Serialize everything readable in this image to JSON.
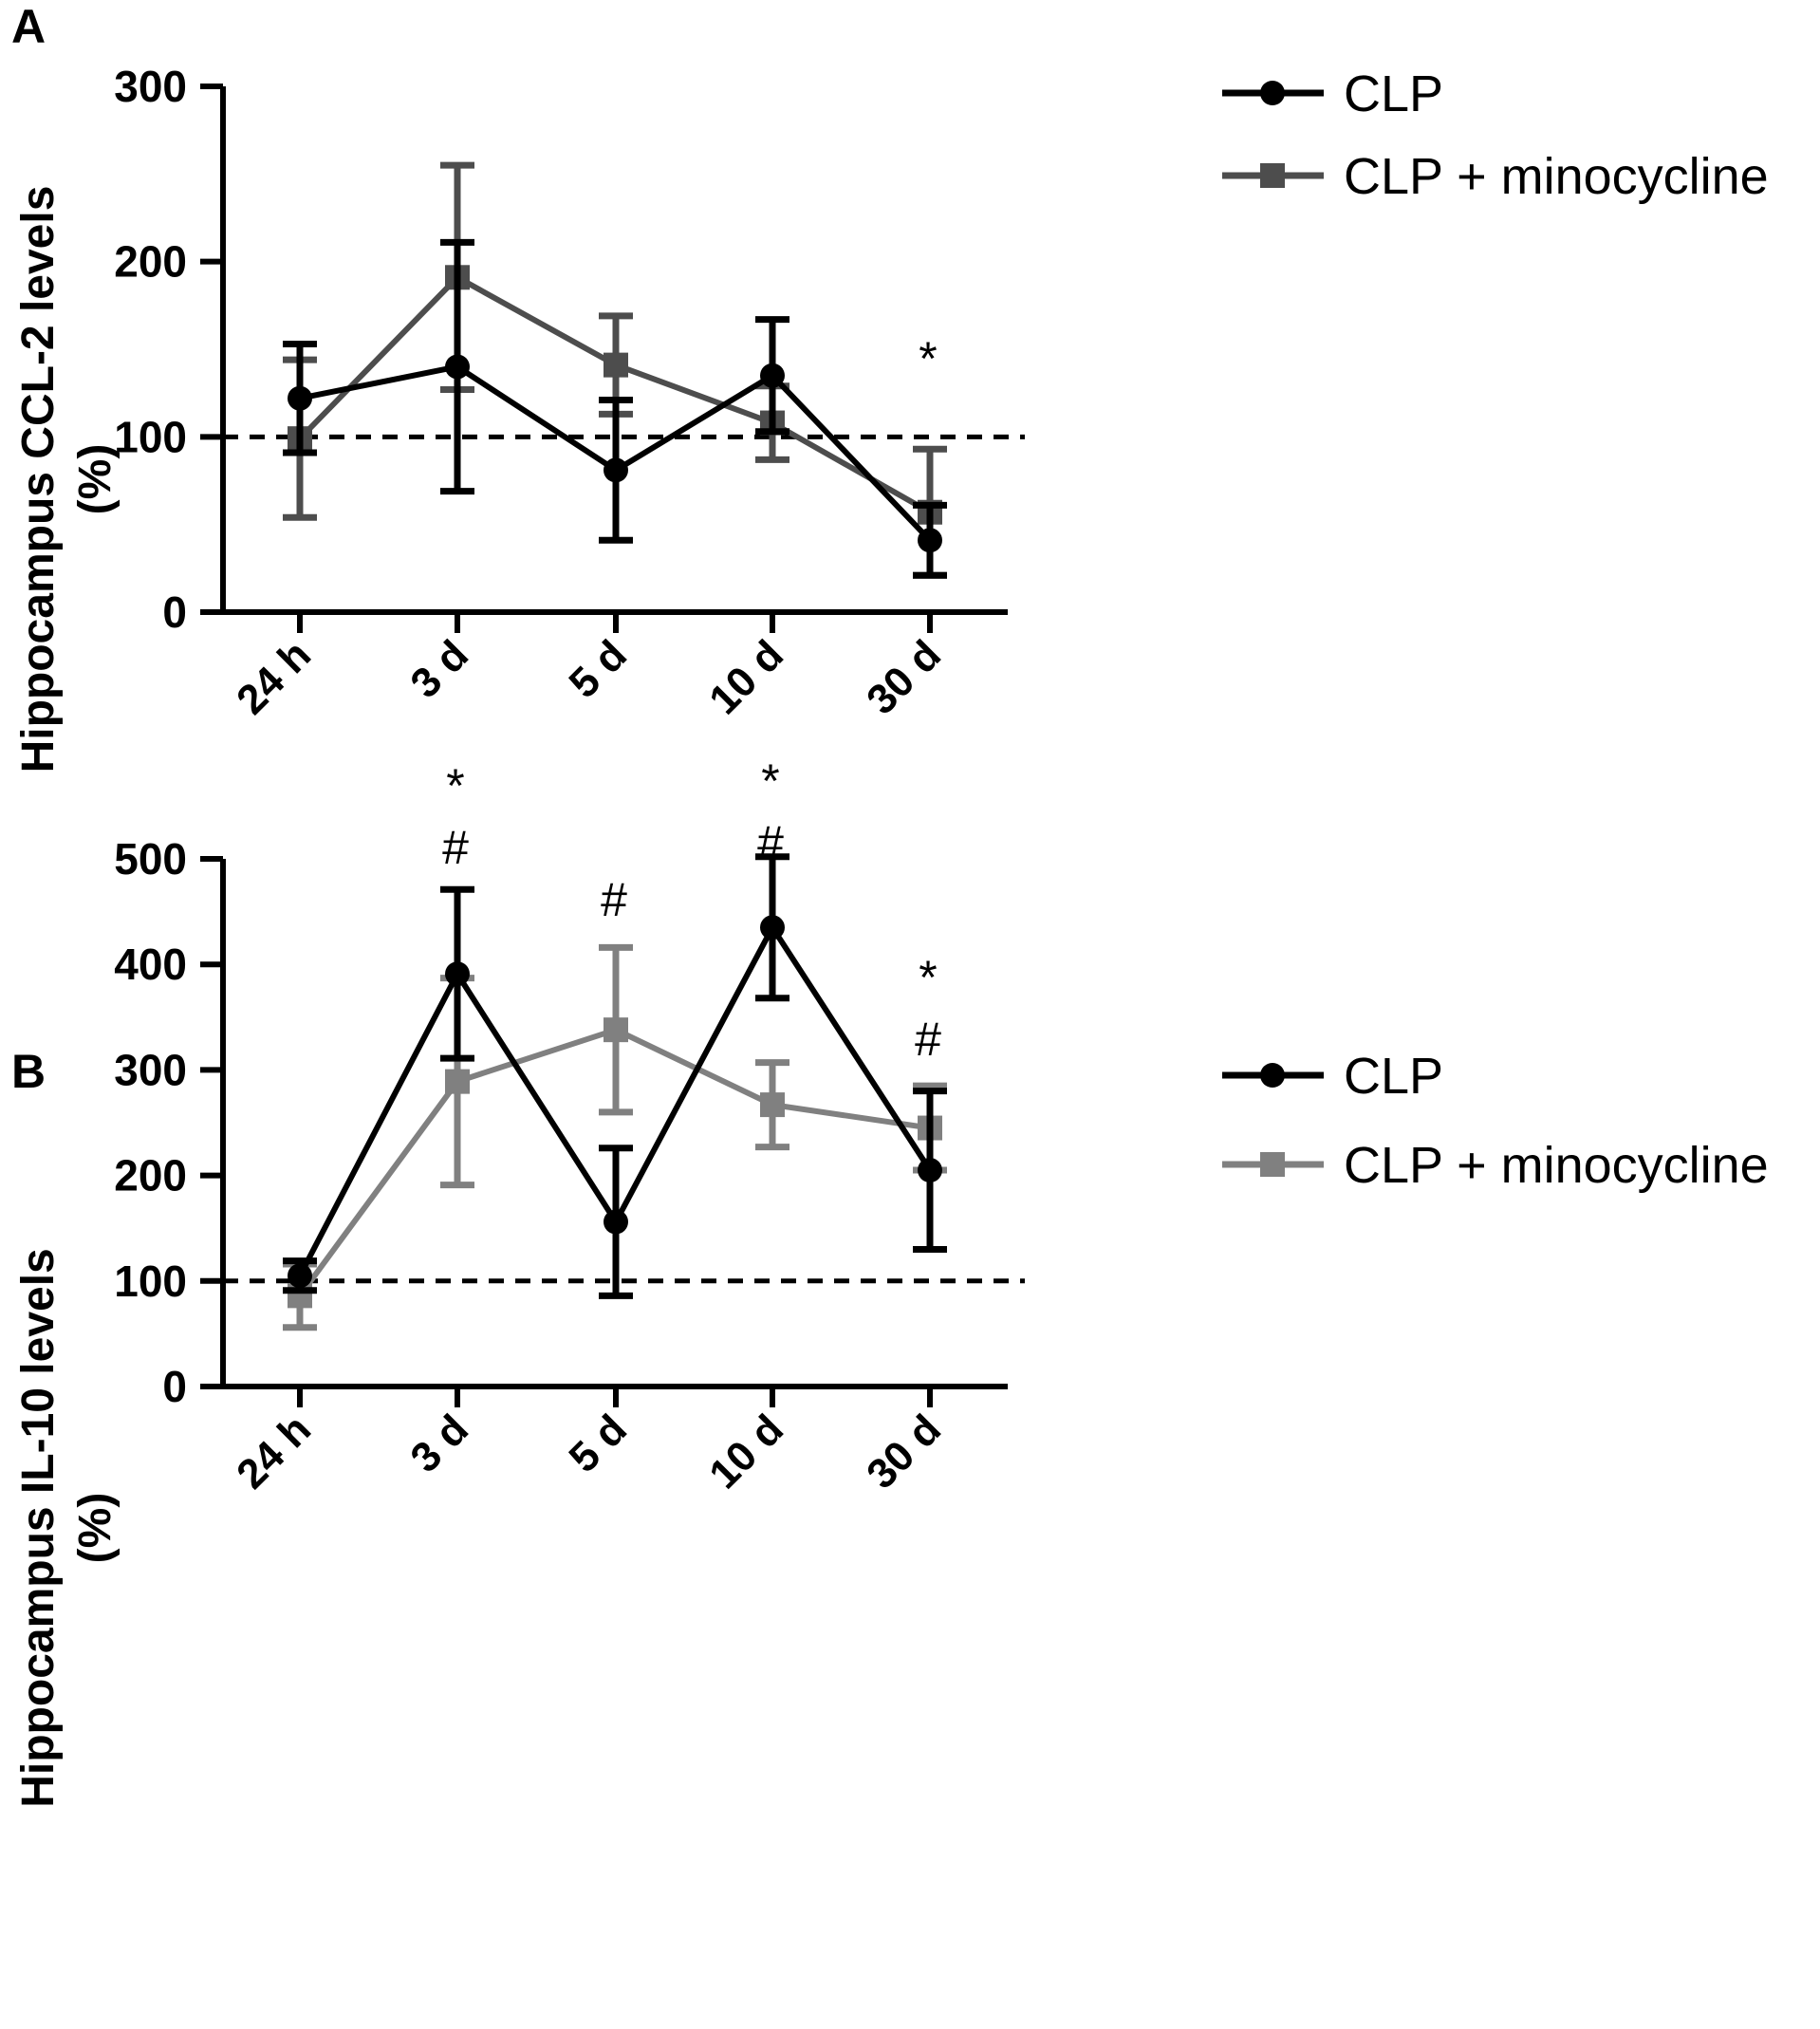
{
  "chart_data": [
    {
      "panel": "A",
      "type": "line",
      "categories": [
        "24 h",
        "3 d",
        "5 d",
        "10 d",
        "30 d"
      ],
      "ylabel_line1": "Hippocampus CCL-2 levels",
      "ylabel_line2": "(%)",
      "ylim": [
        0,
        300
      ],
      "yticks": [
        0,
        100,
        200,
        300
      ],
      "reference_line": 100,
      "legend_placement": "top-right",
      "series": [
        {
          "name": "CLP",
          "marker": "circle",
          "color": "#000000",
          "values": [
            122,
            140,
            81,
            135,
            41
          ],
          "error": [
            31,
            71,
            40,
            32,
            20
          ]
        },
        {
          "name": "CLP + minocycline",
          "marker": "square",
          "color": "#4d4d4d",
          "values": [
            99,
            191,
            141,
            108,
            57
          ],
          "error": [
            45,
            64,
            28,
            21,
            36
          ]
        }
      ],
      "annotations": [
        {
          "category": "30 d",
          "lines": [
            "*"
          ]
        }
      ]
    },
    {
      "panel": "B",
      "type": "line",
      "categories": [
        "24 h",
        "3 d",
        "5 d",
        "10 d",
        "30 d"
      ],
      "ylabel_line1": "Hippocampus IL-10 levels",
      "ylabel_line2": "(%)",
      "ylim": [
        0,
        500
      ],
      "yticks": [
        0,
        100,
        200,
        300,
        400,
        500
      ],
      "reference_line": 100,
      "legend_placement": "top-right",
      "series": [
        {
          "name": "CLP",
          "marker": "circle",
          "color": "#000000",
          "values": [
            105,
            391,
            156,
            435,
            205
          ],
          "error": [
            14,
            80,
            70,
            67,
            75
          ]
        },
        {
          "name": "CLP + minocycline",
          "marker": "square",
          "color": "#808080",
          "values": [
            86,
            289,
            338,
            267,
            245
          ],
          "error": [
            30,
            98,
            78,
            40,
            40
          ]
        }
      ],
      "annotations": [
        {
          "category": "3 d",
          "lines": [
            "*",
            "#"
          ]
        },
        {
          "category": "5 d",
          "lines": [
            "#"
          ]
        },
        {
          "category": "10 d",
          "lines": [
            "*",
            "#"
          ]
        },
        {
          "category": "30 d",
          "lines": [
            "*",
            "#"
          ]
        }
      ]
    }
  ]
}
